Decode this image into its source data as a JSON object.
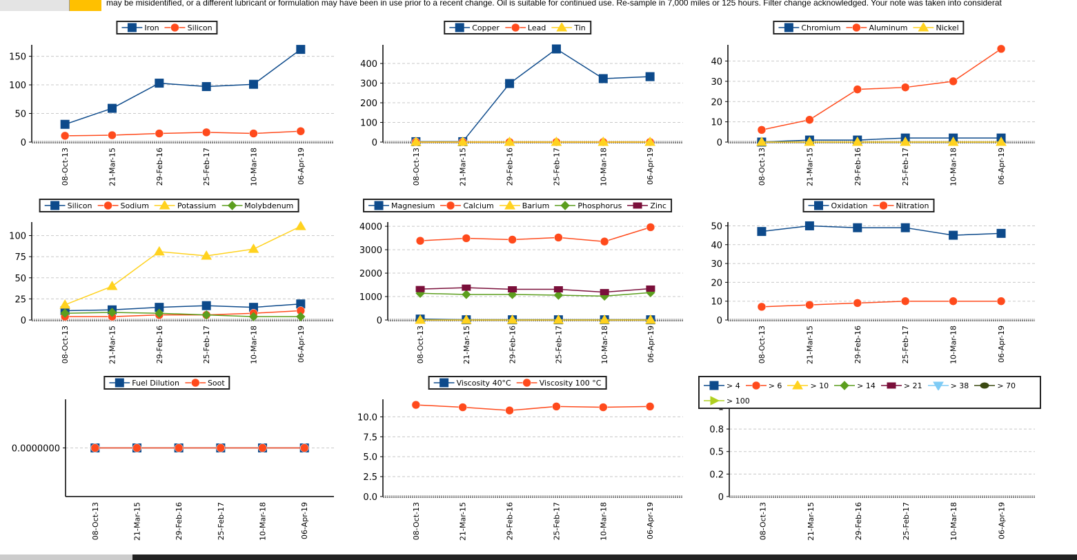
{
  "banner": "may be misidentified, or a different lubricant or formulation may have been in use prior to a recent change. Oil is suitable for continued use. Re-sample in 7,000 miles or 125 hours. Filter change acknowledged. Your note was taken into considerat",
  "chart_data": [
    {
      "type": "line",
      "categories": [
        "08-Oct-13",
        "21-Mar-15",
        "29-Feb-16",
        "25-Feb-17",
        "10-Mar-18",
        "06-Apr-19"
      ],
      "series": [
        {
          "name": "Iron",
          "color": "#0d4a8b",
          "marker": "square",
          "values": [
            31,
            59,
            103,
            97,
            101,
            162
          ]
        },
        {
          "name": "Silicon",
          "color": "#ff4a1c",
          "marker": "circle",
          "values": [
            11,
            12,
            15,
            17,
            15,
            19
          ]
        }
      ],
      "ylim": [
        0,
        170
      ],
      "yticks": [
        0,
        50,
        100,
        150
      ],
      "grid": true
    },
    {
      "type": "line",
      "categories": [
        "08-Oct-13",
        "21-Mar-15",
        "29-Feb-16",
        "25-Feb-17",
        "10-Mar-18",
        "06-Apr-19"
      ],
      "series": [
        {
          "name": "Copper",
          "color": "#0d4a8b",
          "marker": "square",
          "values": [
            2,
            2,
            298,
            474,
            323,
            333
          ]
        },
        {
          "name": "Lead",
          "color": "#ff4a1c",
          "marker": "circle",
          "values": [
            0,
            0,
            0,
            0,
            0,
            0
          ]
        },
        {
          "name": "Tin",
          "color": "#ffd21f",
          "marker": "triangle",
          "values": [
            0,
            0,
            0,
            0,
            0,
            0
          ]
        }
      ],
      "ylim": [
        0,
        495
      ],
      "yticks": [
        0,
        100,
        200,
        300,
        400
      ],
      "grid": true
    },
    {
      "type": "line",
      "categories": [
        "08-Oct-13",
        "21-Mar-15",
        "29-Feb-16",
        "25-Feb-17",
        "10-Mar-18",
        "06-Apr-19"
      ],
      "series": [
        {
          "name": "Chromium",
          "color": "#0d4a8b",
          "marker": "square",
          "values": [
            0,
            1,
            1,
            2,
            2,
            2
          ]
        },
        {
          "name": "Aluminum",
          "color": "#ff4a1c",
          "marker": "circle",
          "values": [
            6,
            11,
            26,
            27,
            30,
            46
          ]
        },
        {
          "name": "Nickel",
          "color": "#ffd21f",
          "marker": "triangle",
          "values": [
            0,
            0,
            0,
            0,
            0,
            0
          ]
        }
      ],
      "ylim": [
        0,
        48
      ],
      "yticks": [
        0,
        10,
        20,
        30,
        40
      ],
      "grid": true
    },
    {
      "type": "line",
      "categories": [
        "08-Oct-13",
        "21-Mar-15",
        "29-Feb-16",
        "25-Feb-17",
        "10-Mar-18",
        "06-Apr-19"
      ],
      "series": [
        {
          "name": "Silicon",
          "color": "#0d4a8b",
          "marker": "square",
          "values": [
            11,
            12,
            15,
            17,
            15,
            19
          ]
        },
        {
          "name": "Sodium",
          "color": "#ff4a1c",
          "marker": "circle",
          "values": [
            4,
            4,
            6,
            6,
            8,
            11
          ]
        },
        {
          "name": "Potassium",
          "color": "#ffd21f",
          "marker": "triangle",
          "values": [
            18,
            40,
            81,
            76,
            84,
            111
          ]
        },
        {
          "name": "Molybdenum",
          "color": "#5c9e1e",
          "marker": "diamond",
          "values": [
            8,
            9,
            8,
            6,
            4,
            4
          ]
        }
      ],
      "ylim": [
        0,
        116
      ],
      "yticks": [
        0,
        25,
        50,
        75,
        100
      ],
      "grid": true
    },
    {
      "type": "line",
      "categories": [
        "08-Oct-13",
        "21-Mar-15",
        "29-Feb-16",
        "25-Feb-17",
        "10-Mar-18",
        "06-Apr-19"
      ],
      "series": [
        {
          "name": "Magnesium",
          "color": "#0d4a8b",
          "marker": "square",
          "values": [
            40,
            10,
            10,
            10,
            10,
            10
          ]
        },
        {
          "name": "Calcium",
          "color": "#ff4a1c",
          "marker": "circle",
          "values": [
            3380,
            3490,
            3430,
            3520,
            3350,
            3960
          ]
        },
        {
          "name": "Barium",
          "color": "#ffd21f",
          "marker": "triangle",
          "values": [
            0,
            0,
            0,
            0,
            0,
            0
          ]
        },
        {
          "name": "Phosphorus",
          "color": "#5c9e1e",
          "marker": "diamond",
          "values": [
            1140,
            1090,
            1090,
            1060,
            1020,
            1170
          ]
        },
        {
          "name": "Zinc",
          "color": "#7a0f3a",
          "marker": "bar",
          "values": [
            1320,
            1380,
            1310,
            1310,
            1190,
            1340
          ]
        }
      ],
      "ylim": [
        0,
        4180
      ],
      "yticks": [
        0,
        1000,
        2000,
        3000,
        4000
      ],
      "grid": true
    },
    {
      "type": "line",
      "categories": [
        "08-Oct-13",
        "21-Mar-15",
        "29-Feb-16",
        "25-Feb-17",
        "10-Mar-18",
        "06-Apr-19"
      ],
      "series": [
        {
          "name": "Oxidation",
          "color": "#0d4a8b",
          "marker": "square",
          "values": [
            47,
            50,
            49,
            49,
            45,
            46
          ]
        },
        {
          "name": "Nitration",
          "color": "#ff4a1c",
          "marker": "circle",
          "values": [
            7,
            8,
            9,
            10,
            10,
            10
          ]
        }
      ],
      "ylim": [
        0,
        52
      ],
      "yticks": [
        0,
        10,
        20,
        30,
        40,
        50
      ],
      "grid": true
    },
    {
      "type": "line",
      "categories": [
        "08-Oct-13",
        "21-Mar-15",
        "29-Feb-16",
        "25-Feb-17",
        "10-Mar-18",
        "06-Apr-19"
      ],
      "series": [
        {
          "name": "Fuel Dilution",
          "color": "#0d4a8b",
          "marker": "square",
          "values": [
            0,
            0,
            0,
            0,
            0,
            0
          ]
        },
        {
          "name": "Soot",
          "color": "#ff4a1c",
          "marker": "circle",
          "values": [
            0,
            0,
            0,
            0,
            0,
            0
          ]
        }
      ],
      "ylim": [
        -1,
        1
      ],
      "yticks": [
        {
          "value": 0,
          "label": "0.0000000"
        }
      ],
      "grid": true
    },
    {
      "type": "line",
      "categories": [
        "08-Oct-13",
        "21-Mar-15",
        "29-Feb-16",
        "25-Feb-17",
        "10-Mar-18",
        "06-Apr-19"
      ],
      "series": [
        {
          "name": "Viscosity 40°C",
          "color": "#0d4a8b",
          "marker": "square",
          "values": [
            null,
            null,
            null,
            null,
            null,
            null
          ]
        },
        {
          "name": "Viscosity 100 °C",
          "color": "#ff4a1c",
          "marker": "circle",
          "values": [
            11.5,
            11.2,
            10.8,
            11.3,
            11.2,
            11.3
          ]
        }
      ],
      "ylim": [
        0,
        12.2
      ],
      "yticks": [
        {
          "value": 0,
          "label": "0.0"
        },
        2.5,
        {
          "value": 5,
          "label": "5.0"
        },
        7.5,
        {
          "value": 10,
          "label": "10.0"
        }
      ],
      "grid": true
    },
    {
      "type": "line",
      "categories": [
        "08-Oct-13",
        "21-Mar-15",
        "29-Feb-16",
        "25-Feb-17",
        "10-Mar-18",
        "06-Apr-19"
      ],
      "series": [
        {
          "name": "> 4",
          "color": "#0d4a8b",
          "marker": "square",
          "values": [
            null,
            null,
            null,
            null,
            null,
            null
          ]
        },
        {
          "name": "> 6",
          "color": "#ff4a1c",
          "marker": "circle",
          "values": [
            null,
            null,
            null,
            null,
            null,
            null
          ]
        },
        {
          "name": "> 10",
          "color": "#ffd21f",
          "marker": "triangle",
          "values": [
            null,
            null,
            null,
            null,
            null,
            null
          ]
        },
        {
          "name": "> 14",
          "color": "#5c9e1e",
          "marker": "diamond",
          "values": [
            null,
            null,
            null,
            null,
            null,
            null
          ]
        },
        {
          "name": "> 21",
          "color": "#7a0f3a",
          "marker": "bar",
          "values": [
            null,
            null,
            null,
            null,
            null,
            null
          ]
        },
        {
          "name": "> 38",
          "color": "#7ecbf5",
          "marker": "triangle-down",
          "values": [
            null,
            null,
            null,
            null,
            null,
            null
          ]
        },
        {
          "name": "> 70",
          "color": "#3b4a12",
          "marker": "ellipse",
          "values": [
            null,
            null,
            null,
            null,
            null,
            null
          ]
        },
        {
          "name": "> 100",
          "color": "#b0d020",
          "marker": "triangle-right",
          "values": [
            null,
            null,
            null,
            null,
            null,
            null
          ]
        }
      ],
      "ylim": [
        0,
        1.08
      ],
      "yticks": [
        0,
        {
          "value": 0.25,
          "label": "0.2"
        },
        0.5,
        {
          "value": 0.75,
          "label": "0.8"
        },
        1
      ],
      "grid": true
    }
  ]
}
